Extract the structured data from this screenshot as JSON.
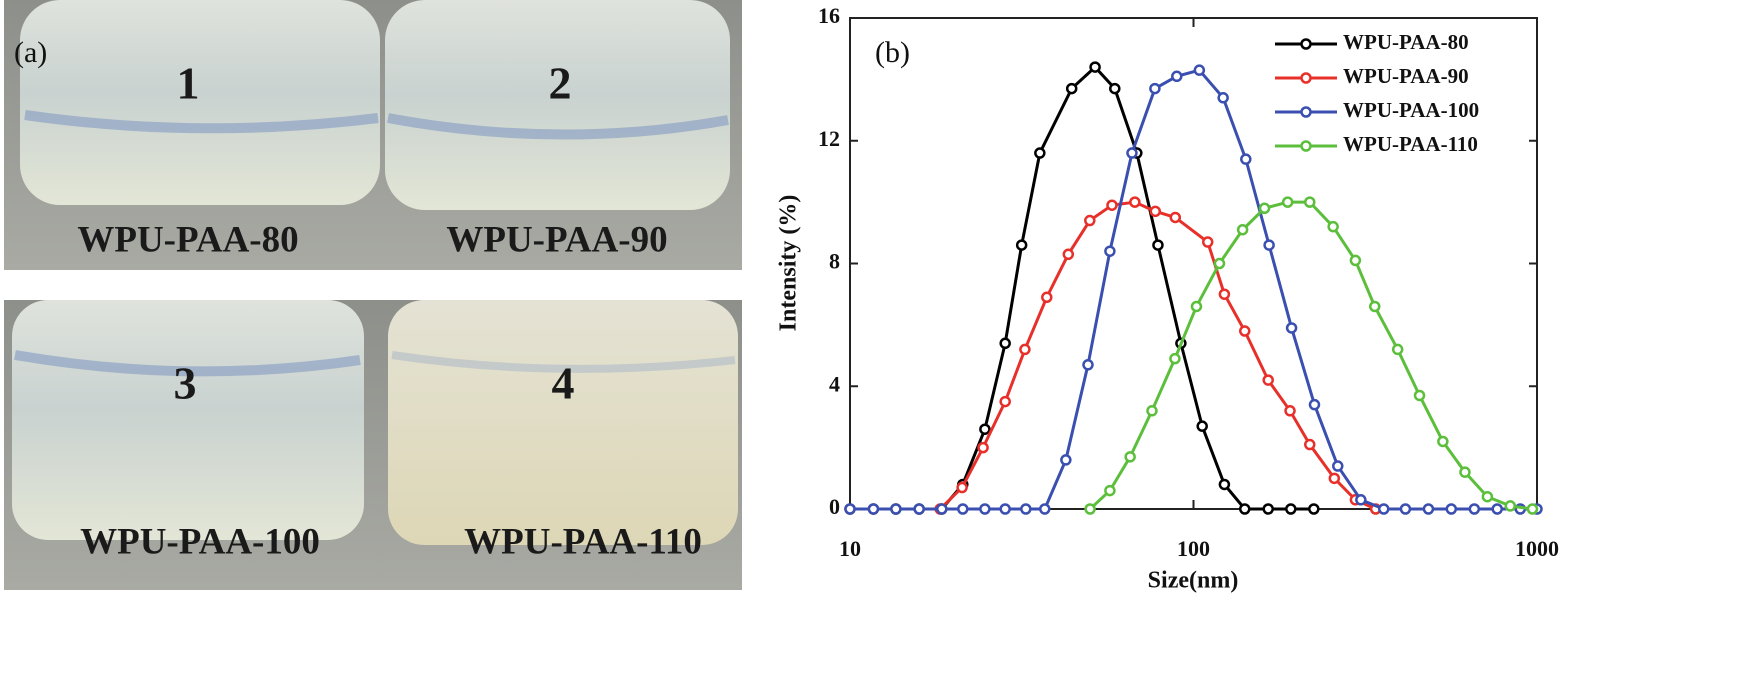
{
  "panel_a": {
    "label": "(a)",
    "samples": [
      {
        "number": "1",
        "name": "WPU-PAA-80"
      },
      {
        "number": "2",
        "name": "WPU-PAA-90"
      },
      {
        "number": "3",
        "name": "WPU-PAA-100"
      },
      {
        "number": "4",
        "name": "WPU-PAA-110"
      }
    ]
  },
  "chart_data": {
    "type": "line",
    "panel_label": "(b)",
    "xlabel": "Size(nm)",
    "ylabel": "Intensity (%)",
    "xscale": "log",
    "xlim": [
      10,
      1000
    ],
    "xticks": [
      10,
      100,
      1000
    ],
    "ylim": [
      0,
      16
    ],
    "yticks": [
      0,
      4,
      8,
      12,
      16
    ],
    "legend": "upper right",
    "series": [
      {
        "name": "WPU-PAA-80",
        "color": "#000000",
        "x": [
          10,
          11.7,
          13.6,
          15.9,
          18.5,
          21.3,
          24.7,
          28.3,
          31.6,
          35.7,
          44.2,
          51.7,
          59,
          68.4,
          78.8,
          91.9,
          106,
          123,
          141,
          165,
          192,
          224
        ],
        "values": [
          0,
          0,
          0,
          0,
          0,
          0.8,
          2.6,
          5.4,
          8.6,
          11.6,
          13.7,
          14.4,
          13.7,
          11.6,
          8.6,
          5.4,
          2.7,
          0.8,
          0,
          0,
          0,
          0
        ]
      },
      {
        "name": "WPU-PAA-90",
        "color": "#e8302a",
        "x": [
          18.3,
          21.2,
          24.4,
          28.3,
          32.3,
          37.4,
          43.2,
          49.9,
          57.9,
          67.5,
          77.4,
          88.5,
          110,
          123,
          141,
          165,
          191,
          218,
          257,
          296,
          339
        ],
        "values": [
          0,
          0.7,
          2,
          3.5,
          5.2,
          6.9,
          8.3,
          9.4,
          9.9,
          10,
          9.7,
          9.5,
          8.7,
          7,
          5.8,
          4.2,
          3.2,
          2.1,
          1,
          0.3,
          0
        ]
      },
      {
        "name": "WPU-PAA-100",
        "color": "#3a4fb0",
        "x": [
          10,
          11.7,
          13.6,
          15.9,
          18.5,
          21.3,
          24.7,
          28.3,
          32.5,
          36.9,
          42.5,
          49.3,
          57.1,
          66.2,
          77.2,
          89.4,
          104,
          122,
          142,
          166,
          193,
          225,
          263,
          307,
          358,
          414,
          483,
          563,
          657,
          766,
          894,
          1000
        ],
        "values": [
          0,
          0,
          0,
          0,
          0,
          0,
          0,
          0,
          0,
          0,
          1.6,
          4.7,
          8.4,
          11.6,
          13.7,
          14.1,
          14.3,
          13.4,
          11.4,
          8.6,
          5.9,
          3.4,
          1.4,
          0.3,
          0,
          0,
          0,
          0,
          0,
          0,
          0,
          0
        ]
      },
      {
        "name": "WPU-PAA-110",
        "color": "#5cbf3c",
        "x": [
          50,
          57.1,
          65.4,
          75.7,
          88.3,
          102,
          119,
          139,
          161,
          188,
          218,
          255,
          296,
          337,
          393,
          455,
          532,
          617,
          717,
          836,
          970
        ],
        "values": [
          0,
          0.6,
          1.7,
          3.2,
          4.9,
          6.6,
          8,
          9.1,
          9.8,
          10,
          10,
          9.2,
          8.1,
          6.6,
          5.2,
          3.7,
          2.2,
          1.2,
          0.4,
          0.1,
          0
        ]
      }
    ]
  }
}
